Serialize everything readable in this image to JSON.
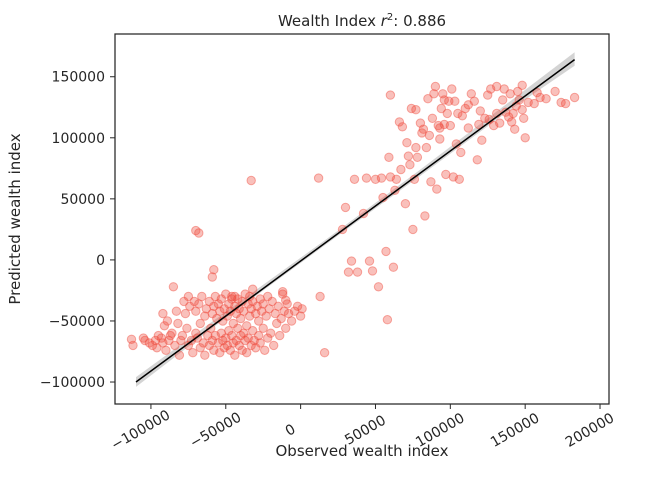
{
  "title": "Wealth Index r²: 0.886",
  "title_base": "Wealth Index ",
  "title_r2_symbol": "r",
  "title_r2_exponent": "2",
  "title_r2_value": ": 0.886",
  "colors": {
    "points": "#ef4a3c",
    "fit_line": "#000000",
    "ci_band": "#bdbdbd",
    "axes": "#262626",
    "background": "#ffffff"
  },
  "chart_data": {
    "type": "scatter",
    "title": "Wealth Index r²: 0.886",
    "xlabel": "Observed wealth index",
    "ylabel": "Predicted wealth index",
    "xlim": [
      -124000,
      206000
    ],
    "ylim": [
      -118000,
      185000
    ],
    "x_ticks": [
      -100000,
      -50000,
      0,
      50000,
      100000,
      150000,
      200000
    ],
    "x_tick_labels": [
      "−100000",
      "−50000",
      "0",
      "50000",
      "100000",
      "150000",
      "200000"
    ],
    "y_ticks": [
      -100000,
      -50000,
      0,
      50000,
      100000,
      150000
    ],
    "y_tick_labels": [
      "−100000",
      "−50000",
      "0",
      "50000",
      "100000",
      "150000"
    ],
    "grid": false,
    "regression_line": {
      "x": [
        -110000,
        183000
      ],
      "y": [
        -100000,
        164000
      ]
    },
    "confidence_band": {
      "x": [
        -110000,
        -50000,
        20000,
        80000,
        140000,
        183000
      ],
      "lower": [
        -104000,
        -47500,
        15500,
        69000,
        123000,
        159000
      ],
      "upper": [
        -96000,
        -42500,
        19500,
        74000,
        130000,
        170000
      ]
    },
    "points": [
      [
        -113000,
        -65000
      ],
      [
        -112000,
        -70000
      ],
      [
        -105000,
        -64000
      ],
      [
        -104000,
        -66000
      ],
      [
        -101000,
        -68000
      ],
      [
        -99000,
        -70000
      ],
      [
        -97000,
        -66000
      ],
      [
        -96000,
        -72000
      ],
      [
        -95000,
        -62000
      ],
      [
        -93000,
        -64000
      ],
      [
        -92000,
        -68000
      ],
      [
        -92000,
        -44000
      ],
      [
        -91000,
        -54000
      ],
      [
        -90000,
        -74000
      ],
      [
        -89000,
        -50000
      ],
      [
        -88000,
        -66000
      ],
      [
        -87000,
        -62000
      ],
      [
        -86000,
        -60000
      ],
      [
        -85000,
        -22000
      ],
      [
        -84000,
        -70000
      ],
      [
        -83000,
        -42000
      ],
      [
        -82000,
        -52000
      ],
      [
        -81000,
        -78000
      ],
      [
        -80000,
        -66000
      ],
      [
        -79000,
        -62000
      ],
      [
        -78000,
        -34000
      ],
      [
        -77000,
        -44000
      ],
      [
        -76000,
        -56000
      ],
      [
        -75000,
        -30000
      ],
      [
        -75000,
        -70000
      ],
      [
        -74000,
        -38000
      ],
      [
        -73000,
        -66000
      ],
      [
        -72000,
        -76000
      ],
      [
        -71000,
        -34000
      ],
      [
        -70000,
        -42000
      ],
      [
        -70000,
        -60000
      ],
      [
        -69000,
        -64000
      ],
      [
        -68000,
        -36000
      ],
      [
        -67000,
        -52000
      ],
      [
        -67000,
        -72000
      ],
      [
        -66000,
        -30000
      ],
      [
        -65000,
        -68000
      ],
      [
        -64000,
        -46000
      ],
      [
        -64000,
        -78000
      ],
      [
        -63000,
        -40000
      ],
      [
        -62000,
        -62000
      ],
      [
        -61000,
        -34000
      ],
      [
        -61000,
        -70000
      ],
      [
        -60000,
        -56000
      ],
      [
        -59000,
        -44000
      ],
      [
        -59000,
        -66000
      ],
      [
        -58000,
        -38000
      ],
      [
        -58000,
        -74000
      ],
      [
        -57000,
        -30000
      ],
      [
        -57000,
        -62000
      ],
      [
        -56000,
        -48000
      ],
      [
        -55000,
        -68000
      ],
      [
        -55000,
        -36000
      ],
      [
        -54000,
        -76000
      ],
      [
        -54000,
        -42000
      ],
      [
        -53000,
        -60000
      ],
      [
        -53000,
        -32000
      ],
      [
        -52000,
        -66000
      ],
      [
        -52000,
        -50000
      ],
      [
        -51000,
        -40000
      ],
      [
        -51000,
        -72000
      ],
      [
        -50000,
        -64000
      ],
      [
        -50000,
        -28000
      ],
      [
        -49000,
        -46000
      ],
      [
        -49000,
        -70000
      ],
      [
        -48000,
        -36000
      ],
      [
        -48000,
        -58000
      ],
      [
        -47000,
        -74000
      ],
      [
        -47000,
        -42000
      ],
      [
        -46000,
        -62000
      ],
      [
        -46000,
        -30000
      ],
      [
        -45000,
        -68000
      ],
      [
        -45000,
        -52000
      ],
      [
        -44000,
        -38000
      ],
      [
        -44000,
        -78000
      ],
      [
        -43000,
        -66000
      ],
      [
        -43000,
        -44000
      ],
      [
        -42000,
        -56000
      ],
      [
        -42000,
        -32000
      ],
      [
        -41000,
        -70000
      ],
      [
        -41000,
        -40000
      ],
      [
        -40000,
        -62000
      ],
      [
        -40000,
        -48000
      ],
      [
        -39000,
        -34000
      ],
      [
        -39000,
        -74000
      ],
      [
        -38000,
        -60000
      ],
      [
        -38000,
        -42000
      ],
      [
        -37000,
        -66000
      ],
      [
        -37000,
        -28000
      ],
      [
        -36000,
        -54000
      ],
      [
        -36000,
        -76000
      ],
      [
        -35000,
        -36000
      ],
      [
        -35000,
        -64000
      ],
      [
        -34000,
        -46000
      ],
      [
        -34000,
        -30000
      ],
      [
        -33000,
        -70000
      ],
      [
        -33000,
        -40000
      ],
      [
        -32000,
        -58000
      ],
      [
        -32000,
        -34000
      ],
      [
        -31000,
        -66000
      ],
      [
        -30000,
        -44000
      ],
      [
        -30000,
        -72000
      ],
      [
        -29000,
        -38000
      ],
      [
        -28000,
        -62000
      ],
      [
        -28000,
        -50000
      ],
      [
        -27000,
        -32000
      ],
      [
        -27000,
        -68000
      ],
      [
        -26000,
        -42000
      ],
      [
        -25000,
        -56000
      ],
      [
        -25000,
        -36000
      ],
      [
        -24000,
        -74000
      ],
      [
        -23000,
        -46000
      ],
      [
        -22000,
        -64000
      ],
      [
        -22000,
        -30000
      ],
      [
        -21000,
        -40000
      ],
      [
        -20000,
        -60000
      ],
      [
        -19000,
        -34000
      ],
      [
        -18000,
        -70000
      ],
      [
        -17000,
        -44000
      ],
      [
        -16000,
        -52000
      ],
      [
        -15000,
        -38000
      ],
      [
        -14000,
        -62000
      ],
      [
        -13000,
        -48000
      ],
      [
        -12000,
        -28000
      ],
      [
        -11000,
        -42000
      ],
      [
        -10000,
        -56000
      ],
      [
        -9000,
        -36000
      ],
      [
        -8000,
        -44000
      ],
      [
        -6000,
        -50000
      ],
      [
        -4000,
        -42000
      ],
      [
        -2000,
        -38000
      ],
      [
        0,
        -46000
      ],
      [
        1000,
        -40000
      ],
      [
        -70000,
        24000
      ],
      [
        -68000,
        22000
      ],
      [
        -58000,
        -8000
      ],
      [
        -59000,
        -14000
      ],
      [
        -46000,
        -32000
      ],
      [
        -44000,
        -30000
      ],
      [
        -33000,
        65000
      ],
      [
        -32000,
        -24000
      ],
      [
        -12000,
        -26000
      ],
      [
        -10000,
        -33000
      ],
      [
        12000,
        67000
      ],
      [
        13000,
        -30000
      ],
      [
        16000,
        -76000
      ],
      [
        28000,
        25000
      ],
      [
        30000,
        43000
      ],
      [
        32000,
        -10000
      ],
      [
        34000,
        -1000
      ],
      [
        36000,
        66000
      ],
      [
        38000,
        -10000
      ],
      [
        42000,
        38000
      ],
      [
        44000,
        67000
      ],
      [
        46000,
        -1000
      ],
      [
        48000,
        -9000
      ],
      [
        50000,
        66000
      ],
      [
        52000,
        -22000
      ],
      [
        54000,
        67000
      ],
      [
        55000,
        51000
      ],
      [
        57000,
        7000
      ],
      [
        58000,
        -49000
      ],
      [
        59000,
        84000
      ],
      [
        60000,
        68000
      ],
      [
        62000,
        -6000
      ],
      [
        63000,
        57000
      ],
      [
        64000,
        66000
      ],
      [
        66000,
        113000
      ],
      [
        67000,
        74000
      ],
      [
        68000,
        109000
      ],
      [
        70000,
        46000
      ],
      [
        71000,
        96000
      ],
      [
        72000,
        85000
      ],
      [
        73000,
        78000
      ],
      [
        74000,
        124000
      ],
      [
        75000,
        25000
      ],
      [
        76000,
        66000
      ],
      [
        77000,
        123000
      ],
      [
        78000,
        84000
      ],
      [
        80000,
        112000
      ],
      [
        81000,
        104000
      ],
      [
        82000,
        107000
      ],
      [
        83000,
        36000
      ],
      [
        84000,
        92000
      ],
      [
        85000,
        132000
      ],
      [
        86000,
        102000
      ],
      [
        87000,
        64000
      ],
      [
        88000,
        116000
      ],
      [
        89000,
        136000
      ],
      [
        90000,
        142000
      ],
      [
        91000,
        58000
      ],
      [
        92000,
        110000
      ],
      [
        93000,
        99000
      ],
      [
        94000,
        124000
      ],
      [
        95000,
        136000
      ],
      [
        96000,
        111000
      ],
      [
        97000,
        70000
      ],
      [
        98000,
        120000
      ],
      [
        99000,
        130000
      ],
      [
        100000,
        110000
      ],
      [
        101000,
        140000
      ],
      [
        102000,
        68000
      ],
      [
        103000,
        130000
      ],
      [
        104000,
        95000
      ],
      [
        105000,
        120000
      ],
      [
        106000,
        66000
      ],
      [
        107000,
        88000
      ],
      [
        108000,
        118000
      ],
      [
        110000,
        124000
      ],
      [
        112000,
        108000
      ],
      [
        114000,
        136000
      ],
      [
        116000,
        130000
      ],
      [
        118000,
        82000
      ],
      [
        119000,
        111000
      ],
      [
        120000,
        122000
      ],
      [
        121000,
        98000
      ],
      [
        123000,
        116000
      ],
      [
        125000,
        135000
      ],
      [
        127000,
        140000
      ],
      [
        129000,
        110000
      ],
      [
        131000,
        120000
      ],
      [
        133000,
        112000
      ],
      [
        135000,
        131000
      ],
      [
        137000,
        121000
      ],
      [
        139000,
        117000
      ],
      [
        141000,
        113000
      ],
      [
        143000,
        107000
      ],
      [
        144000,
        126000
      ],
      [
        145000,
        138000
      ],
      [
        146000,
        131000
      ],
      [
        148000,
        143000
      ],
      [
        149000,
        116000
      ],
      [
        150000,
        100000
      ],
      [
        152000,
        129000
      ],
      [
        156000,
        128000
      ],
      [
        160000,
        133000
      ],
      [
        164000,
        132000
      ],
      [
        170000,
        138000
      ],
      [
        174000,
        129000
      ],
      [
        177000,
        128000
      ],
      [
        183000,
        133000
      ],
      [
        158000,
        137000
      ],
      [
        142000,
        120000
      ],
      [
        126000,
        115000
      ],
      [
        112000,
        127000
      ],
      [
        96000,
        131000
      ],
      [
        93000,
        108000
      ],
      [
        60000,
        135000
      ],
      [
        77000,
        92000
      ],
      [
        140000,
        136000
      ],
      [
        136000,
        140000
      ],
      [
        148000,
        123000
      ],
      [
        131000,
        142000
      ]
    ]
  }
}
